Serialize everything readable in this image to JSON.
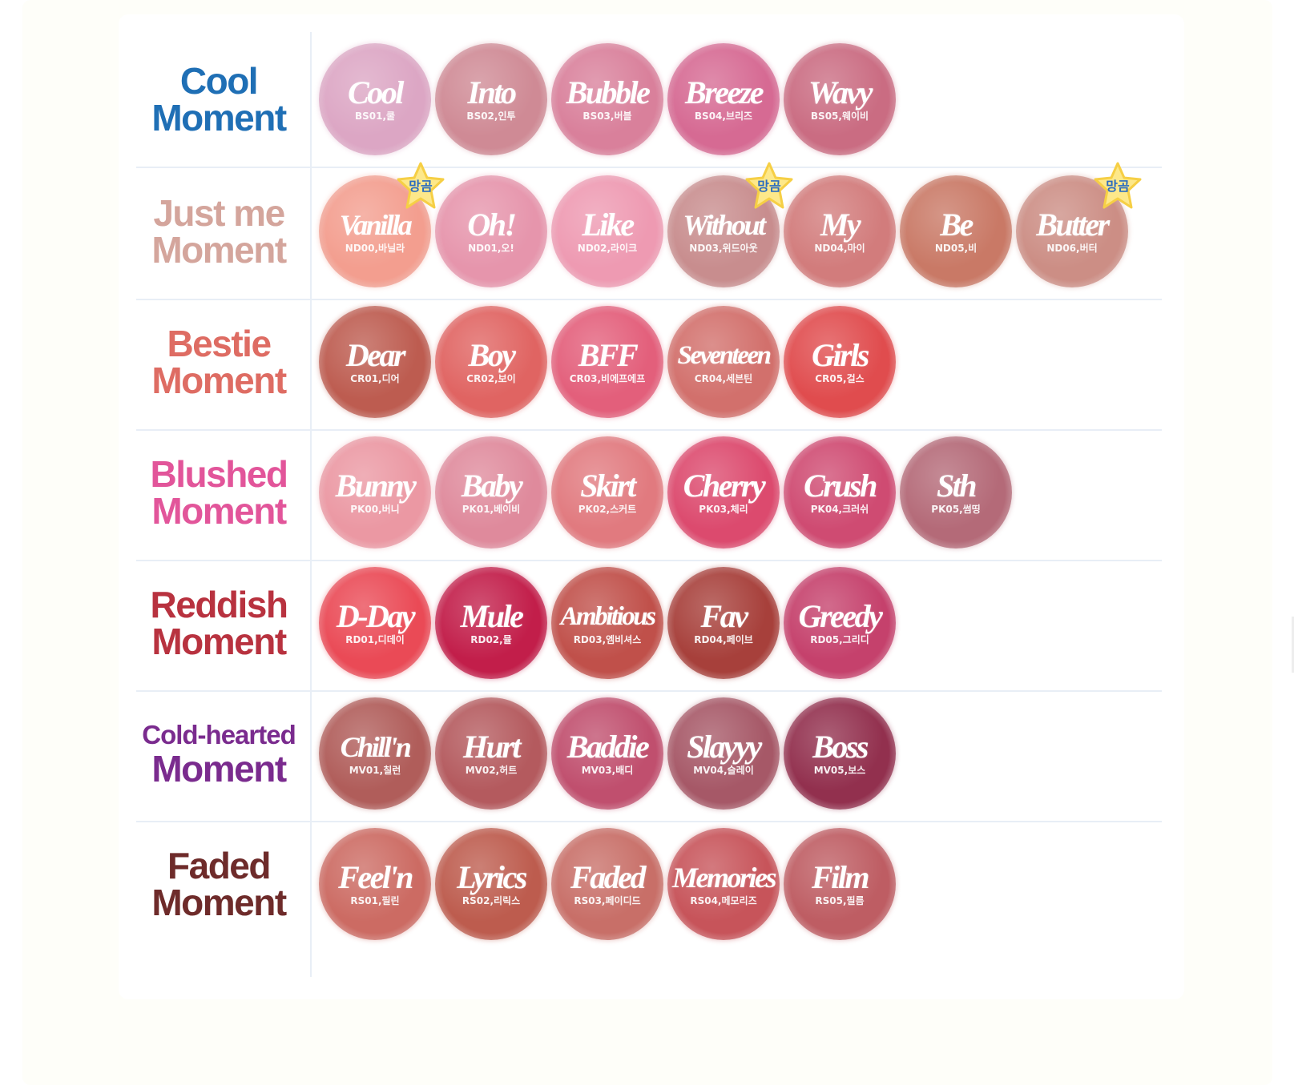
{
  "badge_text": "망곰",
  "rows": [
    {
      "title_line1": "Cool",
      "title_line2": "Moment",
      "title_color": "#1f6fb5",
      "swatches": [
        {
          "name": "Cool",
          "code": "BS01,쿨",
          "color": "#dca6c4"
        },
        {
          "name": "Into",
          "code": "BS02,인투",
          "color": "#cf8a95"
        },
        {
          "name": "Bubble",
          "code": "BS03,버블",
          "color": "#d9809b"
        },
        {
          "name": "Breeze",
          "code": "BS04,브리즈",
          "color": "#d66a93"
        },
        {
          "name": "Wavy",
          "code": "BS05,웨이비",
          "color": "#ca6c82"
        }
      ]
    },
    {
      "title_line1": "Just me",
      "title_line2": "Moment",
      "title_color": "#d4a59c",
      "swatches": [
        {
          "name": "Vanilla",
          "code": "ND00,바닐라",
          "color": "#f39e8f",
          "badge": true
        },
        {
          "name": "Oh!",
          "code": "ND01,오!",
          "color": "#e695ac"
        },
        {
          "name": "Like",
          "code": "ND02,라이크",
          "color": "#ee9ab2"
        },
        {
          "name": "Without",
          "code": "ND03,위드아웃",
          "color": "#c88d8e",
          "badge": true
        },
        {
          "name": "My",
          "code": "ND04,마이",
          "color": "#d27c7c"
        },
        {
          "name": "Be",
          "code": "ND05,비",
          "color": "#c97966"
        },
        {
          "name": "Butter",
          "code": "ND06,버터",
          "color": "#cc8e85",
          "badge": true
        }
      ]
    },
    {
      "title_line1": "Bestie",
      "title_line2": "Moment",
      "title_color": "#de6c63",
      "swatches": [
        {
          "name": "Dear",
          "code": "CR01,디어",
          "color": "#bd5c50"
        },
        {
          "name": "Boy",
          "code": "CR02,보이",
          "color": "#e06462"
        },
        {
          "name": "BFF",
          "code": "CR03,비에프에프",
          "color": "#e35f7b"
        },
        {
          "name": "Seventeen",
          "code": "CR04,세븐틴",
          "color": "#d2706c"
        },
        {
          "name": "Girls",
          "code": "CR05,걸스",
          "color": "#e04c4e"
        }
      ]
    },
    {
      "title_line1": "Blushed",
      "title_line2": "Moment",
      "title_color": "#e2559a",
      "swatches": [
        {
          "name": "Bunny",
          "code": "PK00,버니",
          "color": "#eb98a3"
        },
        {
          "name": "Baby",
          "code": "PK01,베이비",
          "color": "#df8a9c"
        },
        {
          "name": "Skirt",
          "code": "PK02,스커트",
          "color": "#e17a7f"
        },
        {
          "name": "Cherry",
          "code": "PK03,체리",
          "color": "#dc4a6e"
        },
        {
          "name": "Crush",
          "code": "PK04,크러쉬",
          "color": "#cf4b72"
        },
        {
          "name": "Sth",
          "code": "PK05,썸띵",
          "color": "#b46a78"
        }
      ]
    },
    {
      "title_line1": "Reddish",
      "title_line2": "Moment",
      "title_color": "#b8323f",
      "swatches": [
        {
          "name": "D-Day",
          "code": "RD01,디데이",
          "color": "#ea4a56"
        },
        {
          "name": "Mule",
          "code": "RD02,뮬",
          "color": "#c21e4a"
        },
        {
          "name": "Ambitious",
          "code": "RD03,엠비셔스",
          "color": "#c0504a"
        },
        {
          "name": "Fav",
          "code": "RD04,페이브",
          "color": "#a7403b"
        },
        {
          "name": "Greedy",
          "code": "RD05,그리디",
          "color": "#c5416c"
        }
      ]
    },
    {
      "title_line1": "Cold-hearted",
      "title_line2": "Moment",
      "title_color": "#7a2b8e",
      "swatches": [
        {
          "name": "Chill'n",
          "code": "MV01,칠런",
          "color": "#b05d5a"
        },
        {
          "name": "Hurt",
          "code": "MV02,허트",
          "color": "#b45a5e"
        },
        {
          "name": "Baddie",
          "code": "MV03,배디",
          "color": "#c04f6e"
        },
        {
          "name": "Slayyy",
          "code": "MV04,슬레이",
          "color": "#a65867"
        },
        {
          "name": "Boss",
          "code": "MV05,보스",
          "color": "#92304e"
        }
      ]
    },
    {
      "title_line1": "Faded",
      "title_line2": "Moment",
      "title_color": "#6e2b2a",
      "swatches": [
        {
          "name": "Feel'n",
          "code": "RS01,필린",
          "color": "#cc6b63"
        },
        {
          "name": "Lyrics",
          "code": "RS02,리릭스",
          "color": "#bd5c4e"
        },
        {
          "name": "Faded",
          "code": "RS03,페이디드",
          "color": "#c86f68"
        },
        {
          "name": "Memories",
          "code": "RS04,메모리즈",
          "color": "#c7545a"
        },
        {
          "name": "Film",
          "code": "RS05,필름",
          "color": "#be5d63"
        }
      ]
    }
  ]
}
